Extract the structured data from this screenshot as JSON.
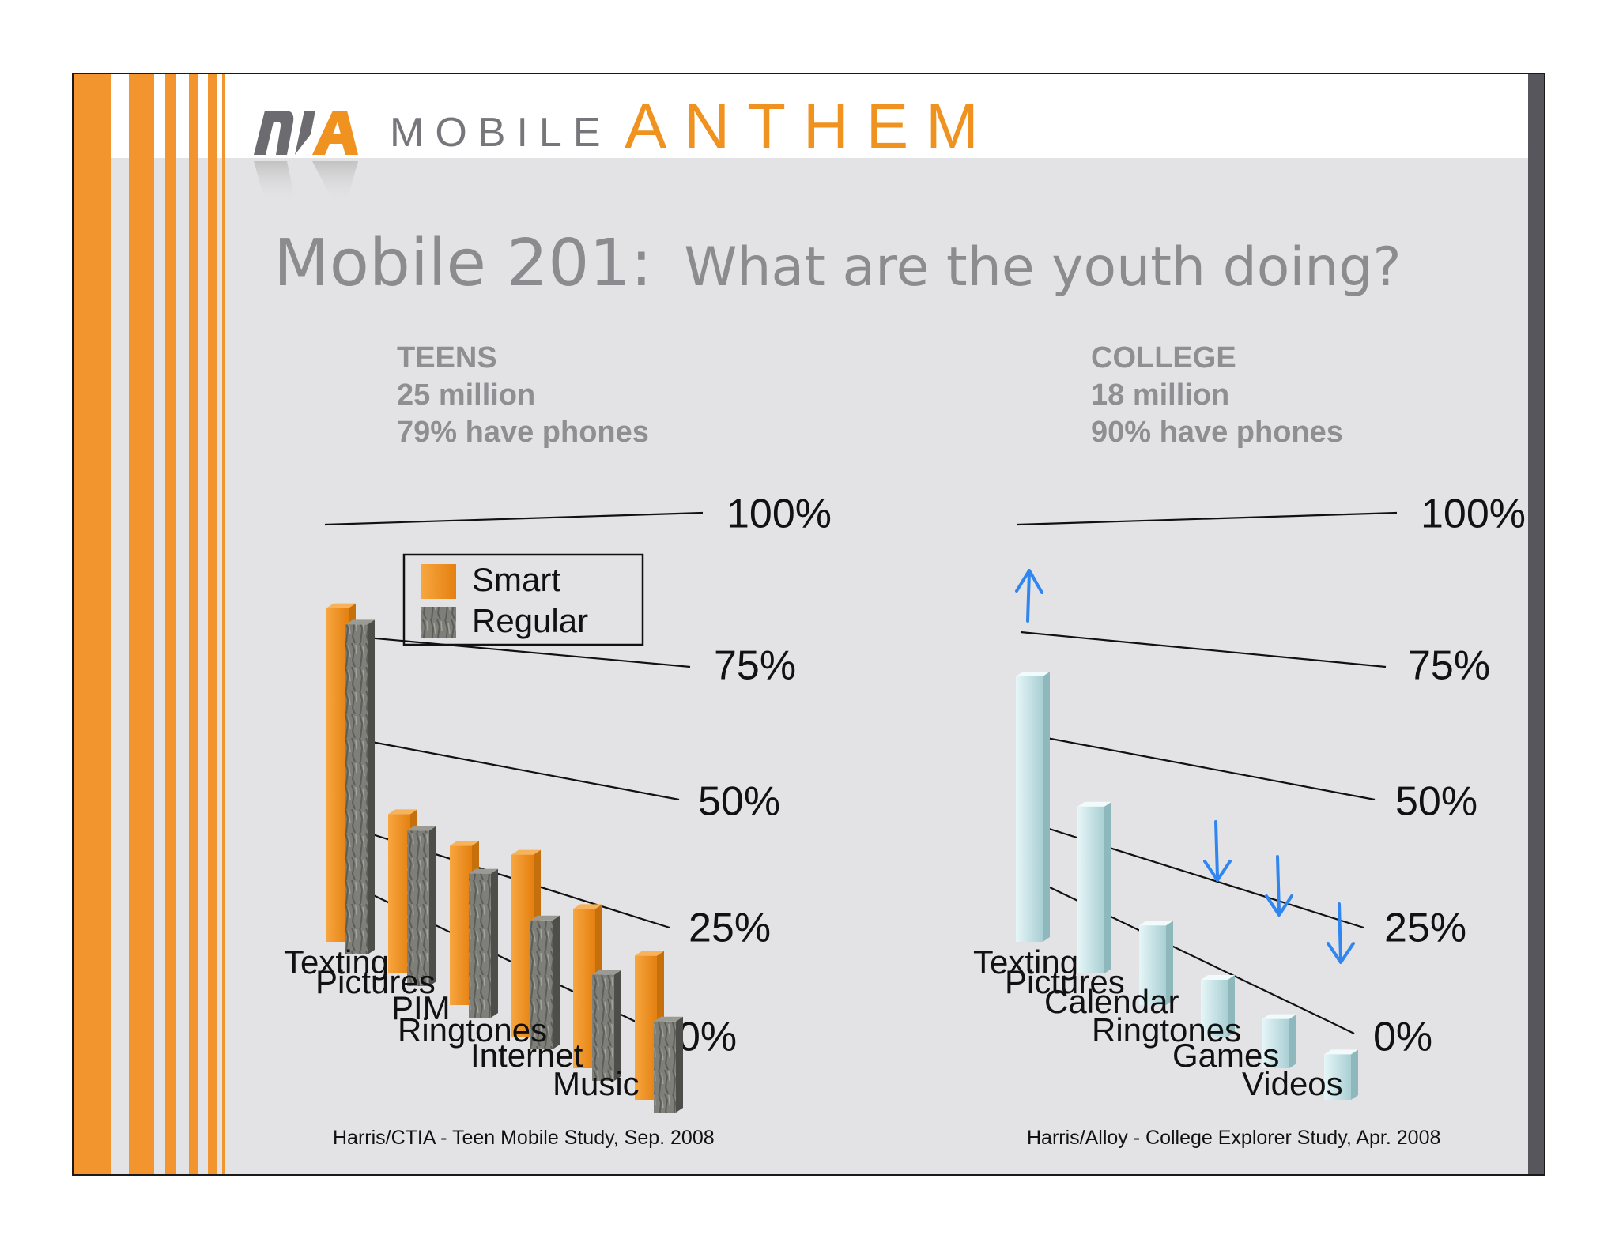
{
  "brand": {
    "mobile": "MOBILE",
    "anthem": "ANTHEM"
  },
  "title": {
    "main": "Mobile 201:",
    "sub": "What are the youth doing?"
  },
  "colors": {
    "stripe": "#f2952f",
    "smart": "#f2901c",
    "regular": "#7d7d78",
    "college": "#cfe9ec",
    "arrow": "#2f86f0",
    "background": "#e3e3e5"
  },
  "icons": {
    "logo": "mobile-anthem-logo-icon",
    "up_arrow": "arrow-up-icon",
    "down_arrow": "arrow-down-icon"
  },
  "teens": {
    "heading": "TEENS",
    "population": "25 million",
    "ownership": "79% have phones",
    "source": "Harris/CTIA - Teen Mobile Study, Sep. 2008"
  },
  "college": {
    "heading": "COLLEGE",
    "population": "18 million",
    "ownership": "90% have phones",
    "source": "Harris/Alloy - College Explorer Study, Apr. 2008"
  },
  "chart_data": [
    {
      "type": "bar",
      "style": "3d-perspective",
      "categories": [
        "Texting",
        "Pictures",
        "PIM",
        "Ringtones",
        "Internet",
        "Music"
      ],
      "series": [
        {
          "name": "Smart",
          "values": [
            88,
            42,
            42,
            48,
            42,
            38
          ]
        },
        {
          "name": "Regular",
          "values": [
            87,
            41,
            38,
            34,
            28,
            24
          ]
        }
      ],
      "yticks": [
        "100%",
        "75%",
        "50%",
        "25%",
        "0%"
      ],
      "ylim": [
        0,
        100
      ],
      "legend": {
        "position": "top",
        "entries": [
          "Smart",
          "Regular"
        ]
      }
    },
    {
      "type": "bar",
      "style": "3d-perspective",
      "categories": [
        "Texting",
        "Pictures",
        "Calendar",
        "Ringtones",
        "Games",
        "Videos"
      ],
      "series": [
        {
          "values": [
            70,
            44,
            21,
            15,
            13,
            12
          ]
        }
      ],
      "yticks": [
        "100%",
        "75%",
        "50%",
        "25%",
        "0%"
      ],
      "ylim": [
        0,
        100
      ],
      "annotations": [
        {
          "type": "arrow-up",
          "category": "Texting"
        },
        {
          "type": "arrow-down",
          "category": "Ringtones"
        },
        {
          "type": "arrow-down",
          "category": "Games"
        },
        {
          "type": "arrow-down",
          "category": "Videos"
        }
      ]
    }
  ]
}
